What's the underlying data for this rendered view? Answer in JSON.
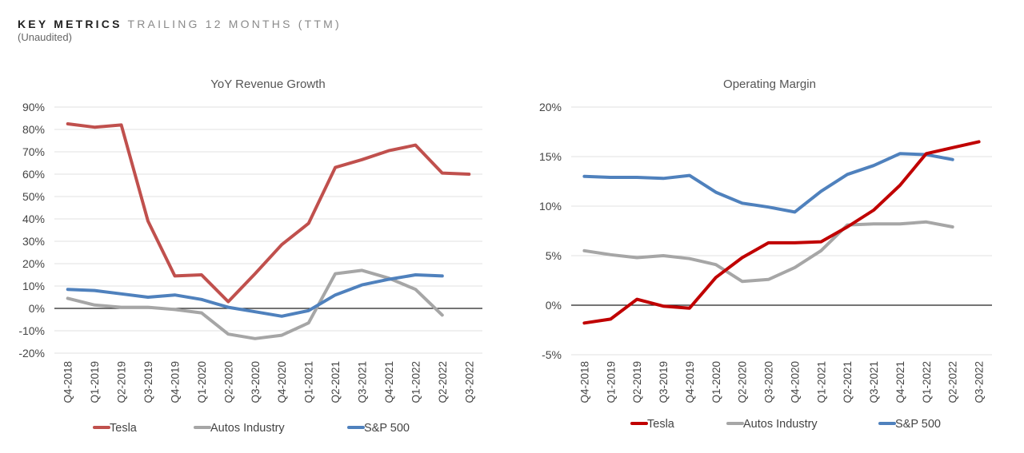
{
  "header": {
    "title_strong": "KEY METRICS",
    "title_light": "TRAILING 12 MONTHS (TTM)",
    "subtitle": "(Unaudited)"
  },
  "chart_data": [
    {
      "type": "line",
      "title": "YoY Revenue Growth",
      "categories": [
        "Q4-2018",
        "Q1-2019",
        "Q2-2019",
        "Q3-2019",
        "Q4-2019",
        "Q1-2020",
        "Q2-2020",
        "Q3-2020",
        "Q4-2020",
        "Q1-2021",
        "Q2-2021",
        "Q3-2021",
        "Q4-2021",
        "Q1-2022",
        "Q2-2022",
        "Q3-2022"
      ],
      "ylim": [
        -20,
        90
      ],
      "yticks": [
        "90%",
        "80%",
        "70%",
        "60%",
        "50%",
        "40%",
        "30%",
        "20%",
        "10%",
        "0%",
        "-10%",
        "-20%"
      ],
      "ytick_values": [
        90,
        80,
        70,
        60,
        50,
        40,
        30,
        20,
        10,
        0,
        -10,
        -20
      ],
      "grid": true,
      "legend": "bottom",
      "series": [
        {
          "name": "Tesla",
          "color": "#c0504d",
          "values": [
            82.5,
            81,
            82,
            39,
            14.5,
            15,
            3,
            15.5,
            28.5,
            38,
            63,
            66.5,
            70.5,
            73,
            60.5,
            60
          ]
        },
        {
          "name": "Autos Industry",
          "color": "#a6a6a6",
          "values": [
            4.5,
            1.5,
            0.5,
            0.5,
            -0.5,
            -2,
            -11.5,
            -13.5,
            -12,
            -6.5,
            15.5,
            17,
            13.5,
            8.5,
            -3,
            null
          ]
        },
        {
          "name": "S&P 500",
          "color": "#4f81bd",
          "values": [
            8.5,
            8,
            6.5,
            5,
            6,
            4,
            0.5,
            -1.5,
            -3.5,
            -1,
            6,
            10.5,
            13,
            15,
            14.5,
            null
          ]
        }
      ]
    },
    {
      "type": "line",
      "title": "Operating Margin",
      "categories": [
        "Q4-2018",
        "Q1-2019",
        "Q2-2019",
        "Q3-2019",
        "Q4-2019",
        "Q1-2020",
        "Q2-2020",
        "Q3-2020",
        "Q4-2020",
        "Q1-2021",
        "Q2-2021",
        "Q3-2021",
        "Q4-2021",
        "Q1-2022",
        "Q2-2022",
        "Q3-2022"
      ],
      "ylim": [
        -5,
        20
      ],
      "yticks": [
        "20%",
        "15%",
        "10%",
        "5%",
        "0%",
        "-5%"
      ],
      "ytick_values": [
        20,
        15,
        10,
        5,
        0,
        -5
      ],
      "grid": true,
      "legend": "bottom",
      "series": [
        {
          "name": "Tesla",
          "color": "#c00000",
          "values": [
            -1.8,
            -1.4,
            0.6,
            -0.1,
            -0.3,
            2.8,
            4.8,
            6.3,
            6.3,
            6.4,
            7.9,
            9.6,
            12.1,
            15.3,
            15.9,
            16.5
          ]
        },
        {
          "name": "Autos Industry",
          "color": "#a6a6a6",
          "values": [
            5.5,
            5.1,
            4.8,
            5.0,
            4.7,
            4.1,
            2.4,
            2.6,
            3.8,
            5.5,
            8.1,
            8.2,
            8.2,
            8.4,
            7.9,
            null
          ]
        },
        {
          "name": "S&P 500",
          "color": "#4f81bd",
          "values": [
            13.0,
            12.9,
            12.9,
            12.8,
            13.1,
            11.4,
            10.3,
            9.9,
            9.4,
            11.5,
            13.2,
            14.1,
            15.3,
            15.2,
            14.7,
            null
          ]
        }
      ]
    }
  ]
}
